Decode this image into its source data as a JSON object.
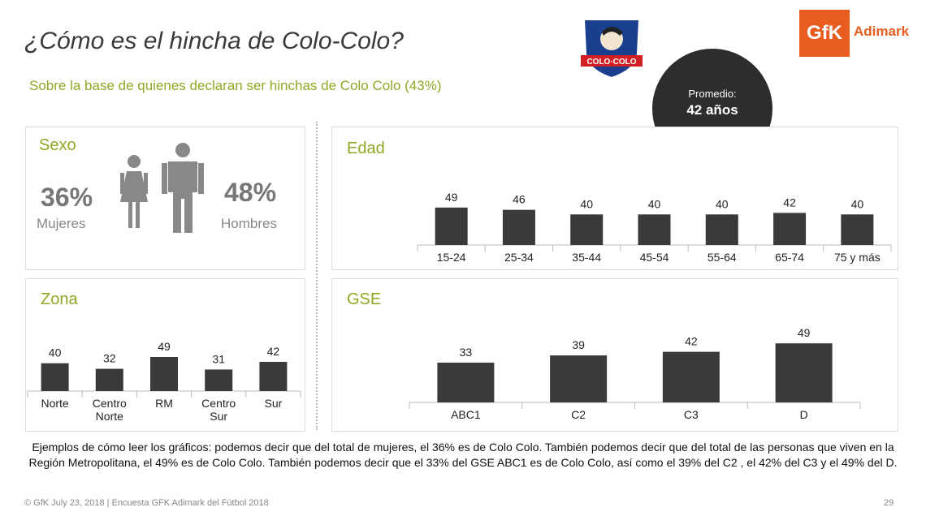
{
  "header": {
    "title": "¿Cómo es el hincha de Colo-Colo?",
    "subtitle": "Sobre la base de quienes declaran ser hinchas de Colo Colo (43%)",
    "club_logo_text": "COLO·COLO",
    "gfk_logo": "GfK",
    "gfk_brand": "Adimark"
  },
  "promedio": {
    "label": "Promedio:",
    "value": "42 años"
  },
  "sexo": {
    "title": "Sexo",
    "women_pct": "36%",
    "women_label": "Mujeres",
    "men_pct": "48%",
    "men_label": "Hombres"
  },
  "colors": {
    "bar": "#3a3a3a",
    "accent": "#8fa824",
    "gfk": "#e85d1f",
    "bubble": "#2d2d2d"
  },
  "chart_data": [
    {
      "type": "bar",
      "title": "Edad",
      "categories": [
        "15-24",
        "25-34",
        "35-44",
        "45-54",
        "55-64",
        "65-74",
        "75 y más"
      ],
      "values": [
        49,
        46,
        40,
        40,
        40,
        42,
        40
      ],
      "ylim": [
        0,
        70
      ]
    },
    {
      "type": "bar",
      "title": "Zona",
      "categories": [
        "Norte",
        "Centro\nNorte",
        "RM",
        "Centro\nSur",
        "Sur"
      ],
      "values": [
        40,
        32,
        49,
        31,
        42
      ],
      "ylim": [
        0,
        70
      ]
    },
    {
      "type": "bar",
      "title": "GSE",
      "categories": [
        "ABC1",
        "C2",
        "C3",
        "D"
      ],
      "values": [
        33,
        39,
        42,
        49
      ],
      "ylim": [
        0,
        70
      ]
    }
  ],
  "footer": {
    "note": "Ejemplos de cómo leer los gráficos: podemos decir que del total de mujeres, el 36% es de Colo Colo. También podemos decir que del total de las personas que viven en la Región Metropolitana, el 49% es de Colo Colo. También podemos decir que el 33% del GSE ABC1 es de Colo Colo,  así como el 39% del C2 , el 42% del C3 y el 49% del D.",
    "copyright": "© GfK July 23, 2018 | Encuesta GFK Adimark del Fútbol 2018",
    "page": "29"
  }
}
